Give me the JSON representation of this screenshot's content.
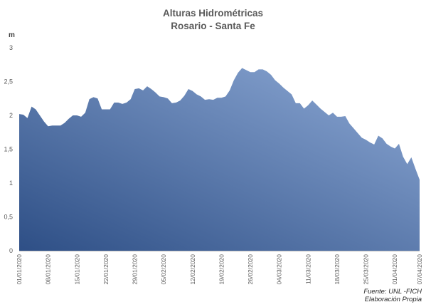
{
  "chart_data": {
    "type": "area",
    "title": "Alturas Hidrométricas",
    "subtitle": "Rosario - Santa Fe",
    "ylabel": "m",
    "xlabel": "",
    "ylim": [
      0,
      3
    ],
    "y_ticks": [
      "0",
      "0,5",
      "1",
      "1,5",
      "2",
      "2,5",
      "3"
    ],
    "x_tick_labels": [
      "01/01/2020",
      "08/01/2020",
      "15/01/2020",
      "22/01/2020",
      "29/01/2020",
      "05/02/2020",
      "12/02/2020",
      "19/02/2020",
      "26/02/2020",
      "04/03/2020",
      "11/03/2020",
      "18/03/2020",
      "25/03/2020",
      "01/04/2020",
      "07/04/2020"
    ],
    "grid": false,
    "legend": "none",
    "colors": {
      "fill_top": "#8eaad6",
      "fill_bottom": "#2e4f86",
      "axis_text": "#595959"
    },
    "series": [
      {
        "x": [
          "01/01/2020",
          "02/01/2020",
          "03/01/2020",
          "04/01/2020",
          "05/01/2020",
          "06/01/2020",
          "07/01/2020",
          "08/01/2020",
          "09/01/2020",
          "10/01/2020",
          "11/01/2020",
          "12/01/2020",
          "13/01/2020",
          "14/01/2020",
          "15/01/2020",
          "16/01/2020",
          "17/01/2020",
          "18/01/2020",
          "19/01/2020",
          "20/01/2020",
          "21/01/2020",
          "22/01/2020",
          "23/01/2020",
          "24/01/2020",
          "25/01/2020",
          "26/01/2020",
          "27/01/2020",
          "28/01/2020",
          "29/01/2020",
          "30/01/2020",
          "31/01/2020",
          "01/02/2020",
          "02/02/2020",
          "03/02/2020",
          "04/02/2020",
          "05/02/2020",
          "06/02/2020",
          "07/02/2020",
          "08/02/2020",
          "09/02/2020",
          "10/02/2020",
          "11/02/2020",
          "12/02/2020",
          "13/02/2020",
          "14/02/2020",
          "15/02/2020",
          "16/02/2020",
          "17/02/2020",
          "18/02/2020",
          "19/02/2020",
          "20/02/2020",
          "21/02/2020",
          "22/02/2020",
          "23/02/2020",
          "24/02/2020",
          "25/02/2020",
          "26/02/2020",
          "27/02/2020",
          "28/02/2020",
          "29/02/2020",
          "01/03/2020",
          "02/03/2020",
          "03/03/2020",
          "04/03/2020",
          "05/03/2020",
          "06/03/2020",
          "07/03/2020",
          "08/03/2020",
          "09/03/2020",
          "10/03/2020",
          "11/03/2020",
          "12/03/2020",
          "13/03/2020",
          "14/03/2020",
          "15/03/2020",
          "16/03/2020",
          "17/03/2020",
          "18/03/2020",
          "19/03/2020",
          "20/03/2020",
          "21/03/2020",
          "22/03/2020",
          "23/03/2020",
          "24/03/2020",
          "25/03/2020",
          "26/03/2020",
          "27/03/2020",
          "28/03/2020",
          "29/03/2020",
          "30/03/2020",
          "31/03/2020",
          "01/04/2020",
          "02/04/2020",
          "03/04/2020",
          "04/04/2020",
          "05/04/2020",
          "06/04/2020",
          "07/04/2020"
        ],
        "values": [
          2.02,
          2.01,
          1.96,
          2.13,
          2.09,
          2.0,
          1.91,
          1.84,
          1.85,
          1.85,
          1.85,
          1.89,
          1.95,
          2.0,
          2.0,
          1.98,
          2.04,
          2.24,
          2.27,
          2.25,
          2.09,
          2.09,
          2.09,
          2.19,
          2.19,
          2.17,
          2.19,
          2.24,
          2.39,
          2.4,
          2.37,
          2.43,
          2.39,
          2.34,
          2.28,
          2.27,
          2.25,
          2.18,
          2.19,
          2.22,
          2.29,
          2.39,
          2.36,
          2.31,
          2.28,
          2.23,
          2.24,
          2.23,
          2.26,
          2.26,
          2.28,
          2.37,
          2.52,
          2.63,
          2.7,
          2.67,
          2.64,
          2.64,
          2.68,
          2.68,
          2.65,
          2.6,
          2.52,
          2.47,
          2.41,
          2.36,
          2.31,
          2.18,
          2.18,
          2.1,
          2.15,
          2.22,
          2.16,
          2.1,
          2.05,
          2.0,
          2.04,
          1.98,
          1.98,
          1.99,
          1.88,
          1.81,
          1.74,
          1.67,
          1.64,
          1.6,
          1.57,
          1.7,
          1.66,
          1.58,
          1.54,
          1.51,
          1.58,
          1.39,
          1.28,
          1.38,
          1.21,
          1.05
        ]
      }
    ]
  },
  "source": {
    "line1": "Fuente: UNL -FICH",
    "line2": "Elaboración Propia"
  }
}
